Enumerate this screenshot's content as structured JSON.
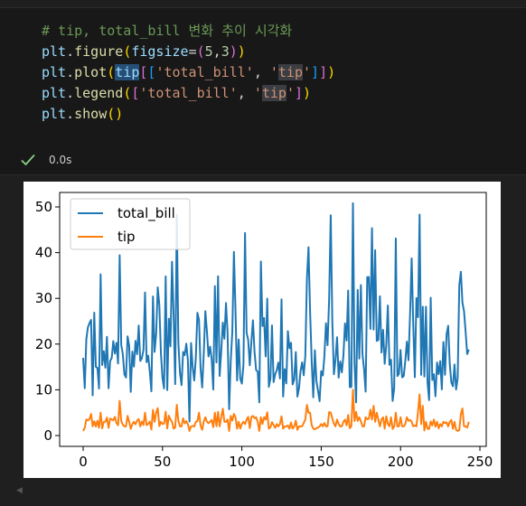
{
  "cell": {
    "code_lines": [
      "# tip, total_bill 변화 추이 시각화",
      "plt.figure(figsize=(5,3))",
      "plt.plot(tip[['total_bill', 'tip']])",
      "plt.legend(['total_bill', 'tip'])",
      "plt.show()"
    ],
    "comment": "# tip, total_bill 변화 추이 시각화",
    "tokens": {
      "plt": "plt",
      "figure": "figure",
      "figsize": "figsize",
      "figsize_val": "(5,3)",
      "plot": "plot",
      "tip": "tip",
      "total_bill_str": "'total_bill'",
      "tip_str": "'tip'",
      "legend": "legend",
      "show": "show"
    },
    "status": {
      "icon": "check-icon",
      "time": "0.0s",
      "color": "#89d185"
    }
  },
  "chart_data": {
    "type": "line",
    "title": "",
    "xlabel": "",
    "ylabel": "",
    "xlim": [
      0,
      250
    ],
    "ylim": [
      0,
      50
    ],
    "xticks": [
      0,
      50,
      100,
      150,
      200,
      250
    ],
    "yticks": [
      0,
      10,
      20,
      30,
      40,
      50
    ],
    "legend_position": "top-left",
    "grid": false,
    "series": [
      {
        "name": "total_bill",
        "color": "#1f77b4",
        "values": [
          16.99,
          10.34,
          21.01,
          23.68,
          24.59,
          25.29,
          8.77,
          26.88,
          15.04,
          14.78,
          10.27,
          35.26,
          15.42,
          18.43,
          14.83,
          21.58,
          10.33,
          16.29,
          16.97,
          20.65,
          17.92,
          20.29,
          15.77,
          39.42,
          19.82,
          17.81,
          13.37,
          12.69,
          21.7,
          19.65,
          9.55,
          18.35,
          15.06,
          20.69,
          17.78,
          24.06,
          16.31,
          16.93,
          18.69,
          31.27,
          16.04,
          17.46,
          13.94,
          9.68,
          30.4,
          18.29,
          22.23,
          32.4,
          28.55,
          18.04,
          12.54,
          10.29,
          34.81,
          9.94,
          25.56,
          19.49,
          38.01,
          26.41,
          11.24,
          48.27,
          20.29,
          13.81,
          11.02,
          18.29,
          17.59,
          20.08,
          16.45,
          3.07,
          20.23,
          15.01,
          12.02,
          17.07,
          26.86,
          25.28,
          14.73,
          10.51,
          17.92,
          27.2,
          22.76,
          17.29,
          19.44,
          16.66,
          10.07,
          32.68,
          15.98,
          34.83,
          13.03,
          18.28,
          24.71,
          21.16,
          28.97,
          22.49,
          5.75,
          16.32,
          22.75,
          40.17,
          27.28,
          12.03,
          21.01,
          12.46,
          11.35,
          15.38,
          44.3,
          22.42,
          20.92,
          15.36,
          20.49,
          25.21,
          18.24,
          14.31,
          14.0,
          7.25,
          38.07,
          23.95,
          25.71,
          17.31,
          29.93,
          10.65,
          12.43,
          24.08,
          11.69,
          13.42,
          14.26,
          15.95,
          12.48,
          29.8,
          8.52,
          14.52,
          11.38,
          22.82,
          19.08,
          20.27,
          11.17,
          12.26,
          18.26,
          8.51,
          10.33,
          14.15,
          16.0,
          13.16,
          17.47,
          34.3,
          41.19,
          27.05,
          16.43,
          8.35,
          18.64,
          11.87,
          9.78,
          7.51,
          14.07,
          13.13,
          17.26,
          24.55,
          19.77,
          29.85,
          48.17,
          25.0,
          13.39,
          16.49,
          21.5,
          12.66,
          16.21,
          13.81,
          17.51,
          24.52,
          20.76,
          31.71,
          10.59,
          10.63,
          50.81,
          15.81,
          7.25,
          31.85,
          16.82,
          32.9,
          17.89,
          14.48,
          9.6,
          34.63,
          34.65,
          23.33,
          45.35,
          23.17,
          40.55,
          20.69,
          20.9,
          30.46,
          18.15,
          23.1,
          15.69,
          19.81,
          28.44,
          15.48,
          16.58,
          7.56,
          10.34,
          43.11,
          13.0,
          13.51,
          18.71,
          12.74,
          13.0,
          16.4,
          20.53,
          16.47,
          26.59,
          38.73,
          24.27,
          12.76,
          30.06,
          25.89,
          48.33,
          13.27,
          28.17,
          12.9,
          28.15,
          11.59,
          7.74,
          30.14,
          12.16,
          13.42,
          8.58,
          15.98,
          13.42,
          16.27,
          10.09,
          20.45,
          13.28,
          22.12,
          24.01,
          15.69,
          11.61,
          10.77,
          15.53,
          10.07,
          12.6,
          32.83,
          35.83,
          29.03,
          27.18,
          22.67,
          17.82,
          18.78
        ]
      },
      {
        "name": "tip",
        "color": "#ff7f0e",
        "values": [
          1.01,
          1.66,
          3.5,
          3.31,
          3.61,
          4.71,
          2.0,
          3.12,
          1.96,
          3.23,
          1.71,
          5.0,
          1.57,
          3.0,
          3.02,
          3.92,
          1.67,
          3.71,
          3.5,
          3.35,
          4.08,
          2.75,
          2.23,
          7.58,
          3.18,
          2.34,
          2.0,
          2.0,
          4.3,
          3.0,
          1.45,
          2.5,
          3.0,
          2.45,
          3.27,
          3.6,
          2.0,
          3.07,
          2.31,
          5.0,
          2.24,
          2.54,
          3.06,
          1.32,
          5.6,
          3.0,
          5.0,
          6.0,
          2.05,
          3.0,
          2.5,
          2.6,
          5.2,
          1.56,
          4.34,
          3.51,
          3.0,
          1.5,
          1.76,
          6.73,
          3.21,
          2.0,
          1.98,
          3.76,
          2.64,
          3.15,
          2.47,
          1.0,
          2.01,
          2.09,
          1.97,
          3.0,
          3.14,
          5.0,
          2.2,
          1.25,
          3.08,
          4.0,
          3.0,
          2.71,
          3.0,
          3.4,
          1.83,
          5.0,
          2.03,
          5.17,
          2.0,
          4.0,
          5.85,
          3.0,
          3.0,
          3.5,
          1.0,
          4.3,
          3.25,
          4.73,
          4.0,
          1.5,
          3.0,
          1.5,
          2.5,
          3.0,
          2.5,
          3.48,
          4.08,
          1.64,
          4.06,
          4.29,
          3.76,
          4.0,
          3.0,
          1.0,
          4.0,
          2.55,
          4.0,
          3.5,
          5.07,
          1.5,
          1.8,
          2.92,
          2.31,
          1.68,
          2.5,
          2.0,
          2.52,
          4.2,
          1.48,
          2.0,
          2.0,
          2.18,
          1.5,
          2.83,
          1.5,
          2.0,
          3.25,
          1.25,
          2.0,
          2.0,
          2.0,
          2.75,
          3.5,
          6.7,
          5.0,
          5.0,
          2.3,
          1.5,
          1.36,
          1.63,
          1.73,
          2.0,
          2.5,
          2.0,
          2.74,
          2.0,
          2.0,
          5.14,
          5.0,
          3.75,
          2.61,
          2.0,
          3.5,
          2.5,
          2.0,
          2.0,
          3.0,
          3.48,
          2.24,
          4.5,
          1.61,
          2.0,
          10.0,
          3.16,
          5.15,
          3.18,
          4.0,
          3.11,
          2.0,
          2.0,
          4.0,
          3.55,
          3.68,
          5.65,
          3.5,
          6.5,
          3.0,
          5.0,
          3.5,
          2.0,
          3.5,
          4.0,
          1.5,
          4.19,
          2.56,
          2.02,
          4.0,
          1.44,
          2.0,
          5.0,
          2.0,
          2.0,
          4.0,
          2.01,
          2.0,
          2.5,
          4.0,
          3.23,
          3.41,
          3.0,
          2.03,
          2.23,
          2.0,
          5.16,
          9.0,
          2.5,
          6.5,
          1.1,
          3.0,
          1.5,
          1.44,
          3.09,
          2.2,
          3.48,
          1.92,
          3.0,
          1.58,
          2.5,
          2.0,
          3.0,
          2.72,
          2.88,
          2.0,
          3.0,
          3.39,
          1.47,
          3.0,
          1.25,
          1.0,
          1.17,
          4.67,
          5.92,
          2.0,
          2.0,
          1.75,
          3.0
        ]
      }
    ]
  }
}
